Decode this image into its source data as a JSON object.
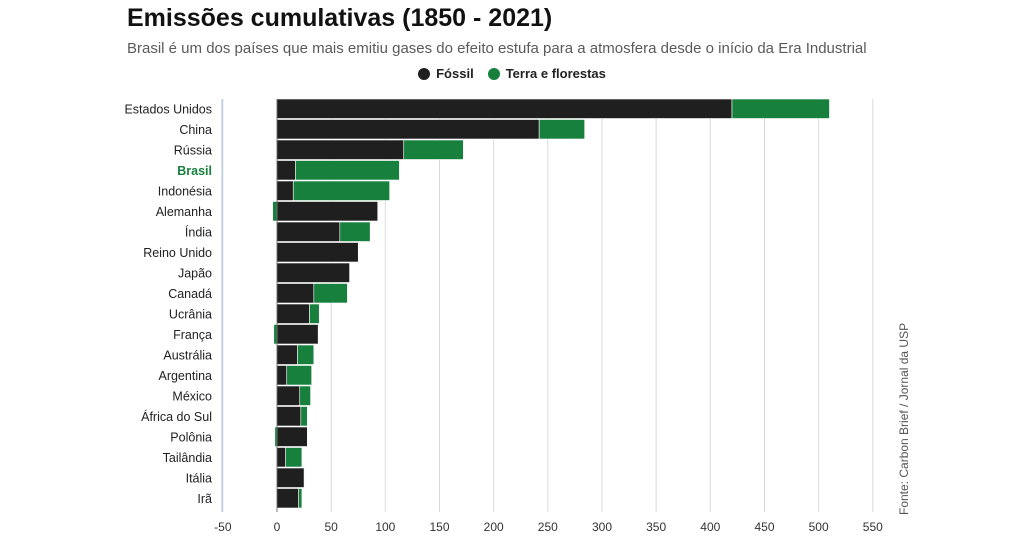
{
  "header": {
    "title": "Emissões cumulativas (1850 - 2021)",
    "subtitle": "Brasil é um dos países que mais emitiu gases do efeito estufa para a atmosfera desde o início da Era Industrial"
  },
  "legend": {
    "fossil_label": "Fóssil",
    "land_label": "Terra e florestas"
  },
  "source": "Fonte: Carbon Brief / Jornal da USP",
  "colors": {
    "fossil": "#1f1f1f",
    "land": "#17803d",
    "highlight_label": "#17803d",
    "grid": "#d9d9d9",
    "zero_axis": "#aac4e6"
  },
  "chart_data": {
    "type": "bar",
    "orientation": "horizontal",
    "stacked": true,
    "categories": [
      "Estados Unidos",
      "China",
      "Rússia",
      "Brasil",
      "Indonésia",
      "Alemanha",
      "Índia",
      "Reino Unido",
      "Japão",
      "Canadá",
      "Ucrânia",
      "França",
      "Austrália",
      "Argentina",
      "México",
      "África do Sul",
      "Polônia",
      "Tailândia",
      "Itália",
      "Irã"
    ],
    "highlight_category": "Brasil",
    "series": [
      {
        "name": "Fóssil",
        "values": [
          420,
          242,
          117,
          17,
          15,
          93,
          58,
          75,
          67,
          34,
          30,
          38,
          19,
          9,
          21,
          22,
          28,
          8,
          25,
          20
        ]
      },
      {
        "name": "Terra e florestas",
        "values": [
          90,
          42,
          55,
          96,
          89,
          -4,
          28,
          0,
          0,
          31,
          9,
          -3,
          15,
          23,
          10,
          6,
          -2,
          15,
          0,
          3
        ]
      }
    ],
    "xlim": [
      -50,
      550
    ],
    "xticks": [
      -50,
      0,
      50,
      100,
      150,
      200,
      250,
      300,
      350,
      400,
      450,
      500,
      550
    ],
    "grid": true,
    "legend_position": "top-center"
  }
}
